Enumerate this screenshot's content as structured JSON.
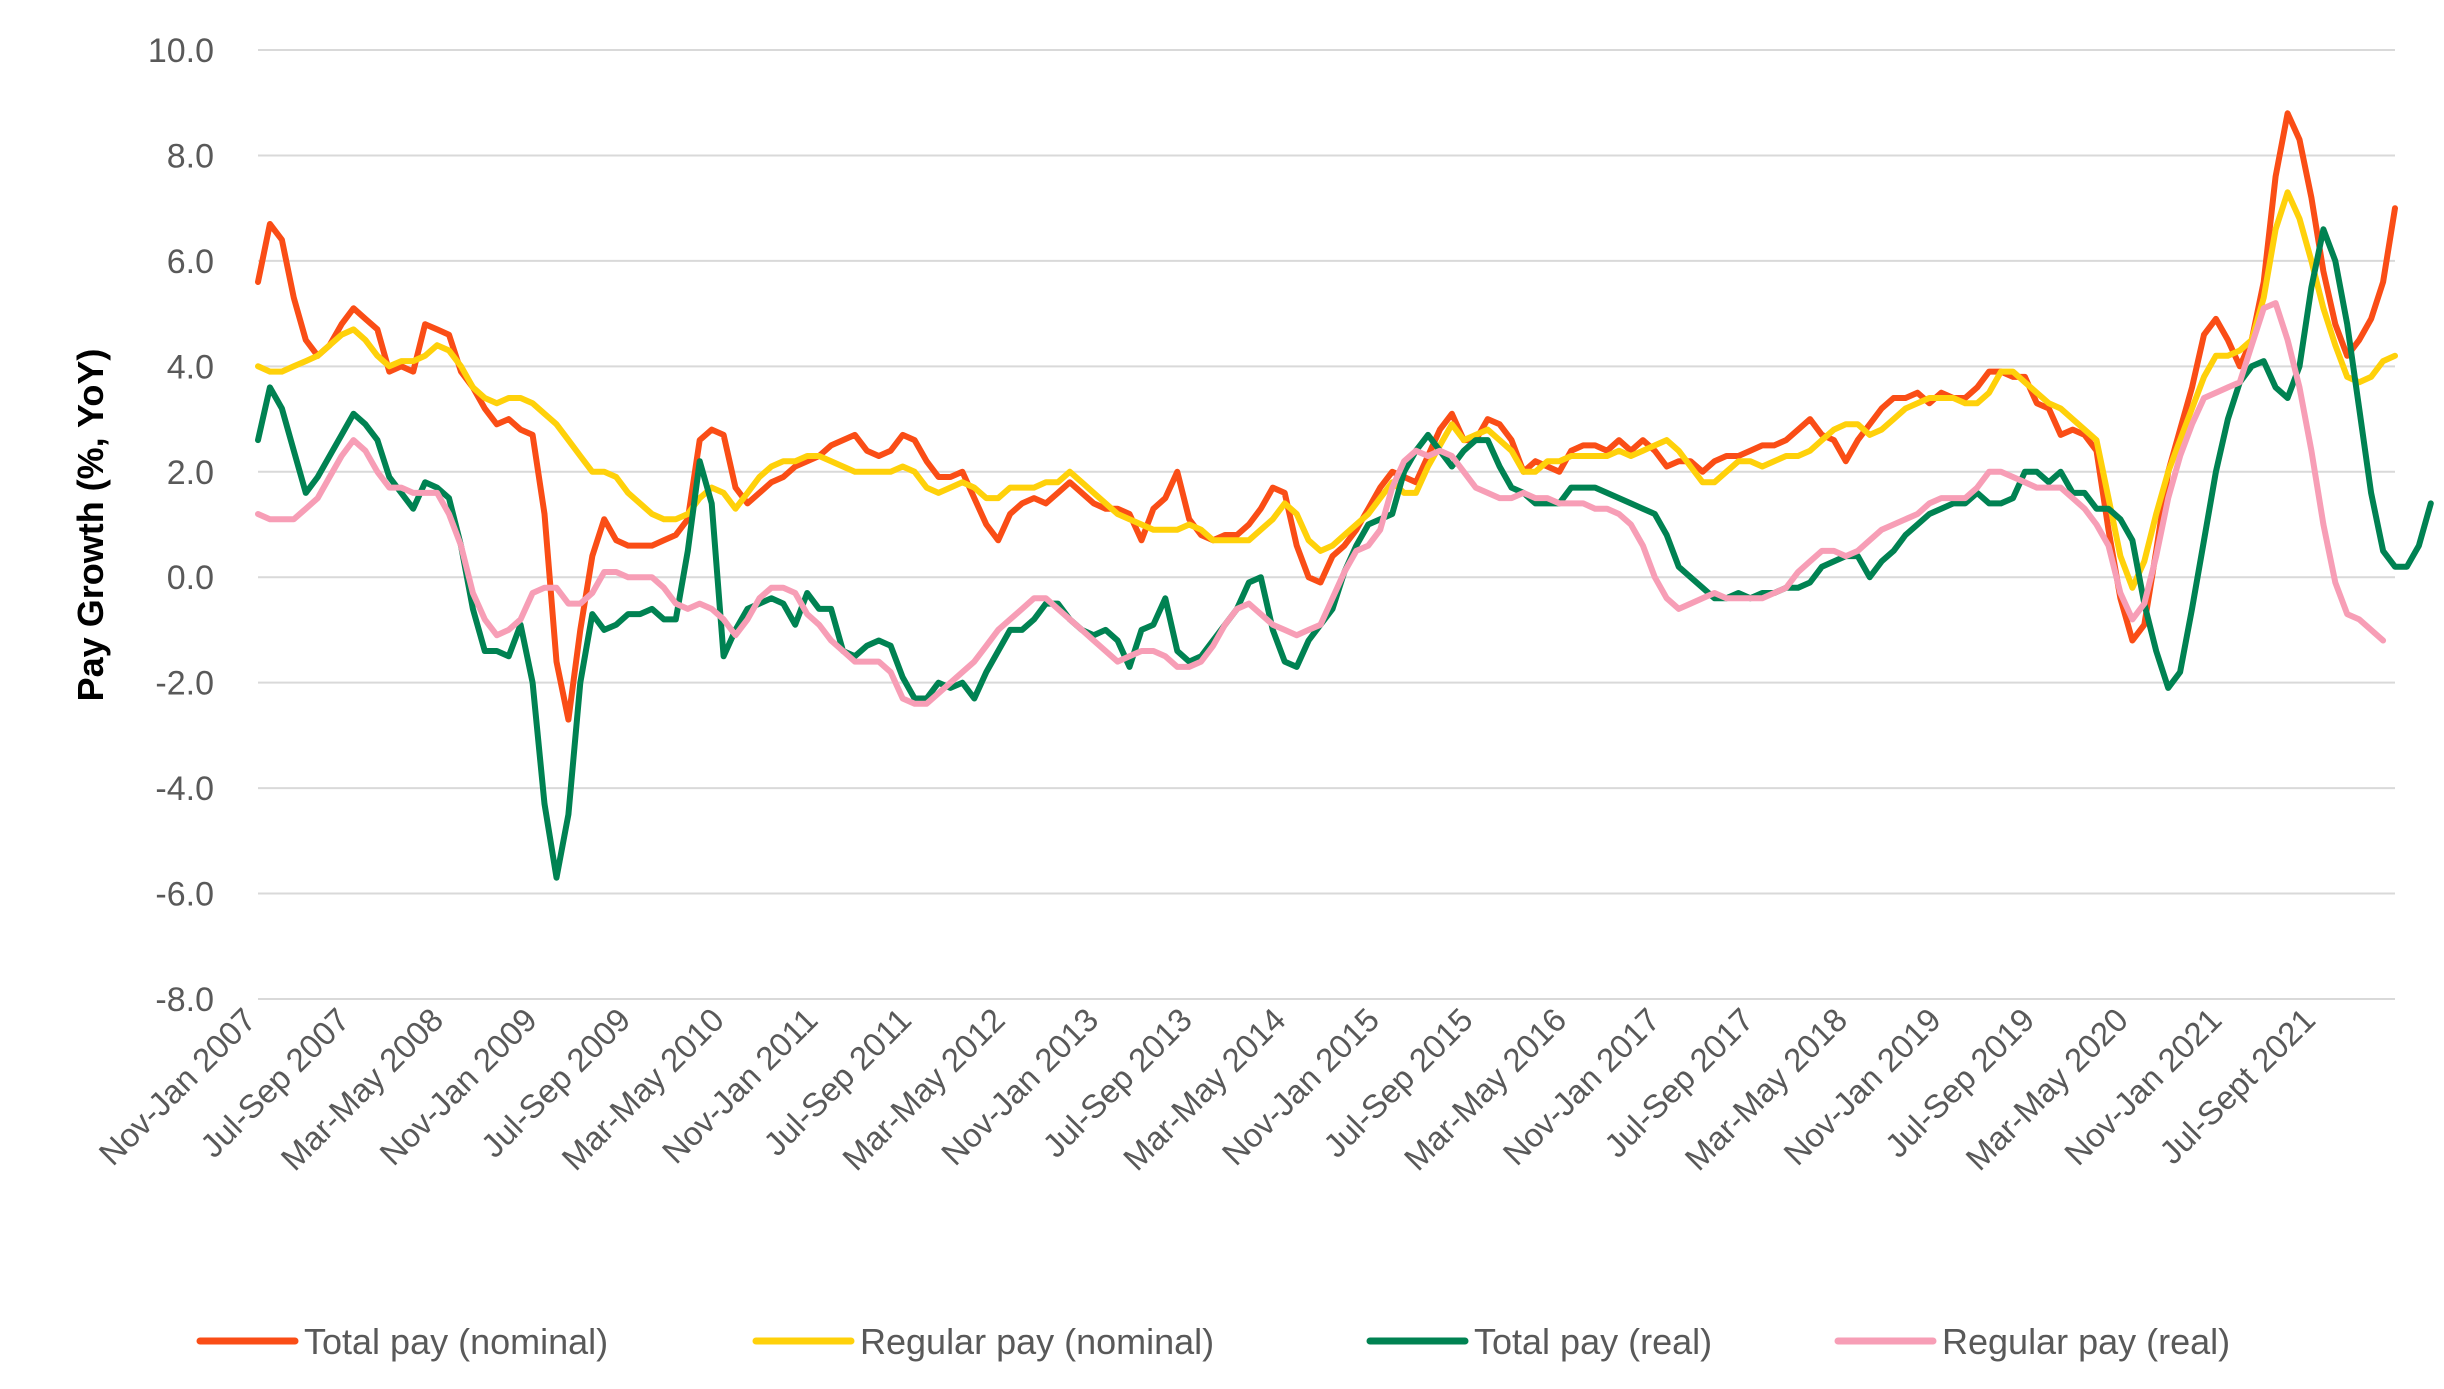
{
  "chart_data": {
    "type": "line",
    "title": "",
    "xlabel": "",
    "ylabel": "Pay Growth (%, YoY)",
    "ylim": [
      -8,
      10
    ],
    "yticks": [
      "10.0",
      "8.0",
      "6.0",
      "4.0",
      "2.0",
      "0.0",
      "-2.0",
      "-4.0",
      "-6.0",
      "-8.0"
    ],
    "grid": true,
    "legend_position": "bottom",
    "x_tick_labels": [
      "Nov-Jan 2007",
      "Jul-Sep 2007",
      "Mar-May 2008",
      "Nov-Jan 2009",
      "Jul-Sep 2009",
      "Mar-May 2010",
      "Nov-Jan 2011",
      "Jul-Sep 2011",
      "Mar-May 2012",
      "Nov-Jan 2013",
      "Jul-Sep 2013",
      "Mar-May 2014",
      "Nov-Jan 2015",
      "Jul-Sep 2015",
      "Mar-May 2016",
      "Nov-Jan 2017",
      "Jul-Sep 2017",
      "Mar-May 2018",
      "Nov-Jan 2019",
      "Jul-Sep 2019",
      "Mar-May 2020",
      "Nov-Jan 2021",
      "Jul-Sept 2021"
    ],
    "series": [
      {
        "name": "Total pay (nominal)",
        "color": "#fa4d16",
        "values": [
          5.6,
          6.7,
          6.4,
          5.3,
          4.5,
          4.2,
          4.4,
          4.8,
          5.1,
          4.9,
          4.7,
          3.9,
          4.0,
          3.9,
          4.8,
          4.7,
          4.6,
          3.9,
          3.6,
          3.2,
          2.9,
          3.0,
          2.8,
          2.7,
          1.2,
          -1.6,
          -2.7,
          -1.0,
          0.4,
          1.1,
          0.7,
          0.6,
          0.6,
          0.6,
          0.7,
          0.8,
          1.1,
          2.6,
          2.8,
          2.7,
          1.7,
          1.4,
          1.6,
          1.8,
          1.9,
          2.1,
          2.2,
          2.3,
          2.5,
          2.6,
          2.7,
          2.4,
          2.3,
          2.4,
          2.7,
          2.6,
          2.2,
          1.9,
          1.9,
          2.0,
          1.5,
          1.0,
          0.7,
          1.2,
          1.4,
          1.5,
          1.4,
          1.6,
          1.8,
          1.6,
          1.4,
          1.3,
          1.3,
          1.2,
          0.7,
          1.3,
          1.5,
          2.0,
          1.1,
          0.8,
          0.7,
          0.8,
          0.8,
          1.0,
          1.3,
          1.7,
          1.6,
          0.6,
          0.0,
          -0.1,
          0.4,
          0.6,
          0.9,
          1.3,
          1.7,
          2.0,
          1.9,
          1.8,
          2.3,
          2.8,
          3.1,
          2.6,
          2.6,
          3.0,
          2.9,
          2.6,
          2.0,
          2.2,
          2.1,
          2.0,
          2.4,
          2.5,
          2.5,
          2.4,
          2.6,
          2.4,
          2.6,
          2.4,
          2.1,
          2.2,
          2.2,
          2.0,
          2.2,
          2.3,
          2.3,
          2.4,
          2.5,
          2.5,
          2.6,
          2.8,
          3.0,
          2.7,
          2.6,
          2.2,
          2.6,
          2.9,
          3.2,
          3.4,
          3.4,
          3.5,
          3.3,
          3.5,
          3.4,
          3.4,
          3.6,
          3.9,
          3.9,
          3.8,
          3.8,
          3.3,
          3.2,
          2.7,
          2.8,
          2.7,
          2.4,
          0.9,
          -0.4,
          -1.2,
          -0.9,
          0.5,
          2.0,
          2.8,
          3.6,
          4.6,
          4.9,
          4.5,
          4.0,
          4.5,
          5.6,
          7.6,
          8.8,
          8.3,
          7.2,
          5.8,
          4.8,
          4.2,
          4.5,
          4.9,
          5.6,
          7.0
        ]
      },
      {
        "name": "Regular pay (nominal)",
        "color": "#ffd10a",
        "values": [
          4.0,
          3.9,
          3.9,
          4.0,
          4.1,
          4.2,
          4.4,
          4.6,
          4.7,
          4.5,
          4.2,
          4.0,
          4.1,
          4.1,
          4.2,
          4.4,
          4.3,
          4.0,
          3.6,
          3.4,
          3.3,
          3.4,
          3.4,
          3.3,
          3.1,
          2.9,
          2.6,
          2.3,
          2.0,
          2.0,
          1.9,
          1.6,
          1.4,
          1.2,
          1.1,
          1.1,
          1.2,
          1.5,
          1.7,
          1.6,
          1.3,
          1.6,
          1.9,
          2.1,
          2.2,
          2.2,
          2.3,
          2.3,
          2.2,
          2.1,
          2.0,
          2.0,
          2.0,
          2.0,
          2.1,
          2.0,
          1.7,
          1.6,
          1.7,
          1.8,
          1.7,
          1.5,
          1.5,
          1.7,
          1.7,
          1.7,
          1.8,
          1.8,
          2.0,
          1.8,
          1.6,
          1.4,
          1.2,
          1.1,
          1.0,
          0.9,
          0.9,
          0.9,
          1.0,
          0.9,
          0.7,
          0.7,
          0.7,
          0.7,
          0.9,
          1.1,
          1.4,
          1.2,
          0.7,
          0.5,
          0.6,
          0.8,
          1.0,
          1.2,
          1.5,
          1.8,
          1.6,
          1.6,
          2.1,
          2.5,
          2.9,
          2.6,
          2.7,
          2.8,
          2.6,
          2.4,
          2.0,
          2.0,
          2.2,
          2.2,
          2.3,
          2.3,
          2.3,
          2.3,
          2.4,
          2.3,
          2.4,
          2.5,
          2.6,
          2.4,
          2.1,
          1.8,
          1.8,
          2.0,
          2.2,
          2.2,
          2.1,
          2.2,
          2.3,
          2.3,
          2.4,
          2.6,
          2.8,
          2.9,
          2.9,
          2.7,
          2.8,
          3.0,
          3.2,
          3.3,
          3.4,
          3.4,
          3.4,
          3.3,
          3.3,
          3.5,
          3.9,
          3.9,
          3.7,
          3.5,
          3.3,
          3.2,
          3.0,
          2.8,
          2.6,
          1.5,
          0.4,
          -0.2,
          0.3,
          1.2,
          2.0,
          2.6,
          3.2,
          3.8,
          4.2,
          4.2,
          4.3,
          4.5,
          5.3,
          6.6,
          7.3,
          6.8,
          6.0,
          5.1,
          4.4,
          3.8,
          3.7,
          3.8,
          4.1,
          4.2
        ]
      },
      {
        "name": "Total pay (real)",
        "color": "#008252",
        "values": [
          2.6,
          3.6,
          3.2,
          2.4,
          1.6,
          1.9,
          2.3,
          2.7,
          3.1,
          2.9,
          2.6,
          1.9,
          1.6,
          1.3,
          1.8,
          1.7,
          1.5,
          0.6,
          -0.6,
          -1.4,
          -1.4,
          -1.5,
          -0.9,
          -2.0,
          -4.3,
          -5.7,
          -4.5,
          -2.0,
          -0.7,
          -1.0,
          -0.9,
          -0.7,
          -0.7,
          -0.6,
          -0.8,
          -0.8,
          0.5,
          2.2,
          1.4,
          -1.5,
          -1.0,
          -0.6,
          -0.5,
          -0.4,
          -0.5,
          -0.9,
          -0.3,
          -0.6,
          -0.6,
          -1.4,
          -1.5,
          -1.3,
          -1.2,
          -1.3,
          -1.9,
          -2.3,
          -2.3,
          -2.0,
          -2.1,
          -2.0,
          -2.3,
          -1.8,
          -1.4,
          -1.0,
          -1.0,
          -0.8,
          -0.5,
          -0.5,
          -0.8,
          -1.0,
          -1.1,
          -1.0,
          -1.2,
          -1.7,
          -1.0,
          -0.9,
          -0.4,
          -1.4,
          -1.6,
          -1.5,
          -1.2,
          -0.9,
          -0.6,
          -0.1,
          0.0,
          -1.0,
          -1.6,
          -1.7,
          -1.2,
          -0.9,
          -0.6,
          0.1,
          0.6,
          1.0,
          1.1,
          1.2,
          2.0,
          2.4,
          2.7,
          2.4,
          2.1,
          2.4,
          2.6,
          2.6,
          2.1,
          1.7,
          1.6,
          1.4,
          1.4,
          1.4,
          1.7,
          1.7,
          1.7,
          1.6,
          1.5,
          1.4,
          1.3,
          1.2,
          0.8,
          0.2,
          0.0,
          -0.2,
          -0.4,
          -0.4,
          -0.3,
          -0.4,
          -0.3,
          -0.3,
          -0.2,
          -0.2,
          -0.1,
          0.2,
          0.3,
          0.4,
          0.4,
          0.0,
          0.3,
          0.5,
          0.8,
          1.0,
          1.2,
          1.3,
          1.4,
          1.4,
          1.6,
          1.4,
          1.4,
          1.5,
          2.0,
          2.0,
          1.8,
          2.0,
          1.6,
          1.6,
          1.3,
          1.3,
          1.1,
          0.7,
          -0.5,
          -1.4,
          -2.1,
          -1.8,
          -0.6,
          0.7,
          2.0,
          3.0,
          3.7,
          4.0,
          4.1,
          3.6,
          3.4,
          4.0,
          5.5,
          6.6,
          6.0,
          4.8,
          3.2,
          1.6,
          0.5,
          0.2,
          0.2,
          0.6,
          1.4
        ]
      },
      {
        "name": "Regular pay (real)",
        "color": "#f79eb6",
        "values": [
          1.2,
          1.1,
          1.1,
          1.1,
          1.3,
          1.5,
          1.9,
          2.3,
          2.6,
          2.4,
          2.0,
          1.7,
          1.7,
          1.6,
          1.6,
          1.6,
          1.2,
          0.6,
          -0.3,
          -0.8,
          -1.1,
          -1.0,
          -0.8,
          -0.3,
          -0.2,
          -0.2,
          -0.5,
          -0.5,
          -0.3,
          0.1,
          0.1,
          0.0,
          0.0,
          0.0,
          -0.2,
          -0.5,
          -0.6,
          -0.5,
          -0.6,
          -0.8,
          -1.1,
          -0.8,
          -0.4,
          -0.2,
          -0.2,
          -0.3,
          -0.7,
          -0.9,
          -1.2,
          -1.4,
          -1.6,
          -1.6,
          -1.6,
          -1.8,
          -2.3,
          -2.4,
          -2.4,
          -2.2,
          -2.0,
          -1.8,
          -1.6,
          -1.3,
          -1.0,
          -0.8,
          -0.6,
          -0.4,
          -0.4,
          -0.6,
          -0.8,
          -1.0,
          -1.2,
          -1.4,
          -1.6,
          -1.5,
          -1.4,
          -1.4,
          -1.5,
          -1.7,
          -1.7,
          -1.6,
          -1.3,
          -0.9,
          -0.6,
          -0.5,
          -0.7,
          -0.9,
          -1.0,
          -1.1,
          -1.0,
          -0.9,
          -0.4,
          0.1,
          0.5,
          0.6,
          0.9,
          1.7,
          2.2,
          2.4,
          2.3,
          2.4,
          2.3,
          2.0,
          1.7,
          1.6,
          1.5,
          1.5,
          1.6,
          1.5,
          1.5,
          1.4,
          1.4,
          1.4,
          1.3,
          1.3,
          1.2,
          1.0,
          0.6,
          0.0,
          -0.4,
          -0.6,
          -0.5,
          -0.4,
          -0.3,
          -0.4,
          -0.4,
          -0.4,
          -0.4,
          -0.3,
          -0.2,
          0.1,
          0.3,
          0.5,
          0.5,
          0.4,
          0.5,
          0.7,
          0.9,
          1.0,
          1.1,
          1.2,
          1.4,
          1.5,
          1.5,
          1.5,
          1.7,
          2.0,
          2.0,
          1.9,
          1.8,
          1.7,
          1.7,
          1.7,
          1.5,
          1.3,
          1.0,
          0.6,
          -0.3,
          -0.8,
          -0.5,
          0.4,
          1.5,
          2.3,
          2.9,
          3.4,
          3.5,
          3.6,
          3.7,
          4.4,
          5.1,
          5.2,
          4.5,
          3.6,
          2.4,
          1.0,
          -0.1,
          -0.7,
          -0.8,
          -1.0,
          -1.2
        ]
      }
    ]
  }
}
